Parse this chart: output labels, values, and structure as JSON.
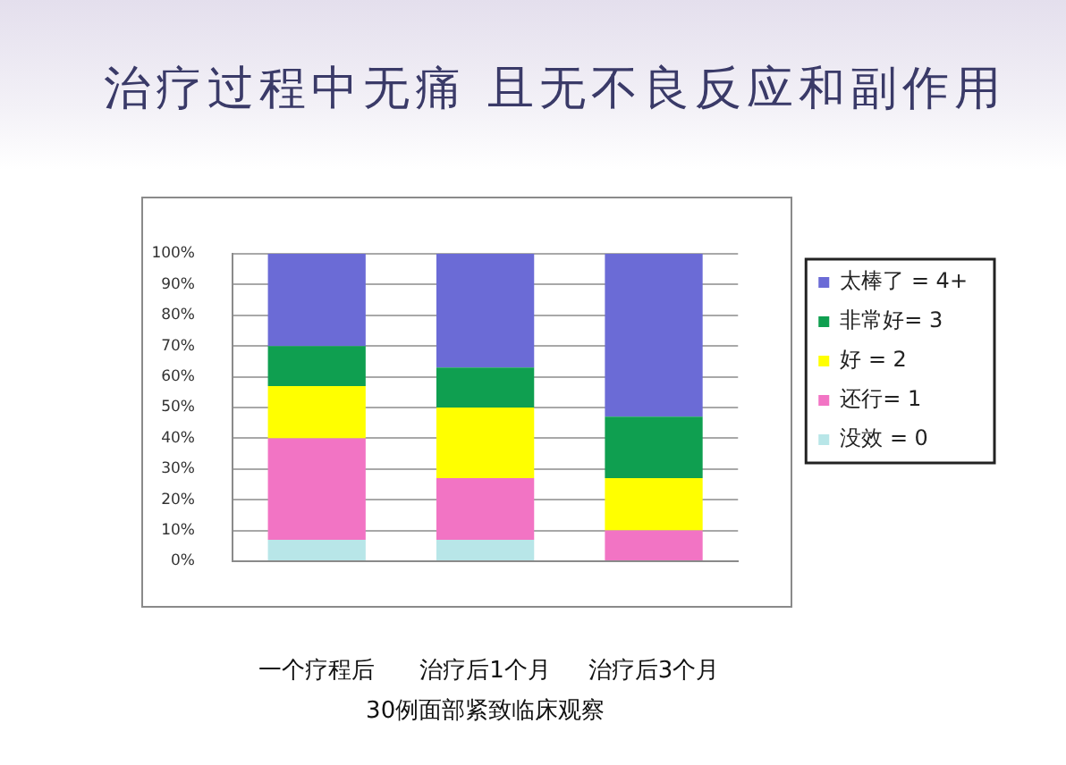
{
  "chart_data": {
    "type": "bar",
    "title": "治疗过程中无痛 且无不良反应和副作用",
    "xlabel": "30例面部紧致临床观察",
    "categories": [
      "一个疗程后",
      "治疗后1个月",
      "治疗后3个月"
    ],
    "stacked": true,
    "series": [
      {
        "name": "没效 = 0",
        "color": "#b8e6e8",
        "values": [
          7,
          7,
          0
        ]
      },
      {
        "name": "还行= 1",
        "color": "#f274c4",
        "values": [
          33,
          20,
          10
        ]
      },
      {
        "name": "好 = 2",
        "color": "#ffff00",
        "values": [
          17,
          23,
          17
        ]
      },
      {
        "name": "非常好= 3",
        "color": "#0f9f50",
        "values": [
          13,
          13,
          20
        ]
      },
      {
        "name": "太棒了 = 4+",
        "color": "#6b6bd6",
        "values": [
          30,
          37,
          53
        ]
      }
    ],
    "ylim": [
      0,
      100
    ],
    "yticks": [
      {
        "value": 0,
        "label": "0%"
      },
      {
        "value": 10,
        "label": "10%"
      },
      {
        "value": 20,
        "label": "20%"
      },
      {
        "value": 30,
        "label": "30%"
      },
      {
        "value": 40,
        "label": "40%"
      },
      {
        "value": 50,
        "label": "50%"
      },
      {
        "value": 60,
        "label": "60%"
      },
      {
        "value": 70,
        "label": "70%"
      },
      {
        "value": 80,
        "label": "80%"
      },
      {
        "value": 90,
        "label": "90%"
      },
      {
        "value": 100,
        "label": "100%"
      }
    ],
    "grid": "y",
    "legend": "right"
  }
}
